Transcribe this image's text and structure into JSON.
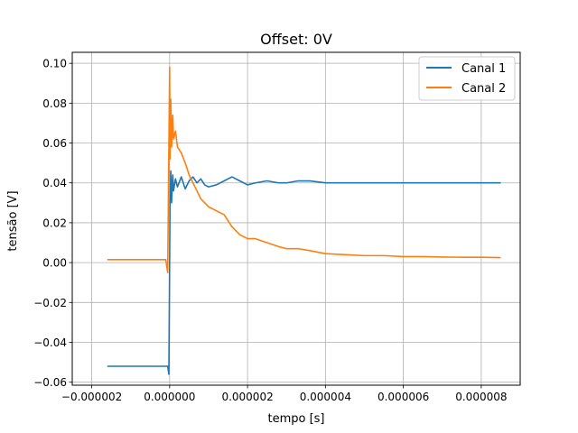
{
  "chart_data": {
    "type": "line",
    "title": "Offset: 0V",
    "xlabel": "tempo [s]",
    "ylabel": "tensão [V]",
    "xlim": [
      -2.5e-06,
      9e-06
    ],
    "ylim": [
      -0.0615,
      0.1055
    ],
    "grid": true,
    "legend_position": "top-right",
    "xticks": [
      {
        "value": -2e-06,
        "label": "−0.000002"
      },
      {
        "value": 0.0,
        "label": "0.000000"
      },
      {
        "value": 2e-06,
        "label": "0.000002"
      },
      {
        "value": 4e-06,
        "label": "0.000004"
      },
      {
        "value": 6e-06,
        "label": "0.000006"
      },
      {
        "value": 8e-06,
        "label": "0.000008"
      }
    ],
    "yticks": [
      {
        "value": -0.06,
        "label": "−0.06"
      },
      {
        "value": -0.04,
        "label": "−0.04"
      },
      {
        "value": -0.02,
        "label": "−0.02"
      },
      {
        "value": 0.0,
        "label": "0.00"
      },
      {
        "value": 0.02,
        "label": "0.02"
      },
      {
        "value": 0.04,
        "label": "0.04"
      },
      {
        "value": 0.06,
        "label": "0.06"
      },
      {
        "value": 0.08,
        "label": "0.08"
      },
      {
        "value": 0.1,
        "label": "0.10"
      }
    ],
    "series": [
      {
        "name": "Canal 1",
        "color": "#1f77b4",
        "x": [
          -1.6e-06,
          -1e-06,
          -5e-07,
          -1.5e-07,
          -5e-08,
          -2e-08,
          0.0,
          1e-08,
          3e-08,
          5e-08,
          8e-08,
          1e-07,
          1.5e-07,
          2e-07,
          3e-07,
          4e-07,
          5e-07,
          6e-07,
          7e-07,
          8e-07,
          9e-07,
          1e-06,
          1.2e-06,
          1.4e-06,
          1.6e-06,
          1.8e-06,
          2e-06,
          2.2e-06,
          2.5e-06,
          2.8e-06,
          3e-06,
          3.3e-06,
          3.6e-06,
          4e-06,
          4.5e-06,
          5e-06,
          5.5e-06,
          6e-06,
          6.5e-06,
          7e-06,
          7.5e-06,
          8e-06,
          8.5e-06
        ],
        "y": [
          -0.052,
          -0.052,
          -0.052,
          -0.052,
          -0.052,
          -0.056,
          0.0,
          0.03,
          0.046,
          0.03,
          0.044,
          0.036,
          0.042,
          0.038,
          0.043,
          0.037,
          0.041,
          0.043,
          0.04,
          0.042,
          0.039,
          0.038,
          0.039,
          0.041,
          0.043,
          0.041,
          0.039,
          0.04,
          0.041,
          0.04,
          0.04,
          0.041,
          0.041,
          0.04,
          0.04,
          0.04,
          0.04,
          0.04,
          0.04,
          0.04,
          0.04,
          0.04,
          0.04
        ]
      },
      {
        "name": "Canal 2",
        "color": "#ff7f0e",
        "x": [
          -1.6e-06,
          -1e-06,
          -5e-07,
          -2e-07,
          -1e-07,
          -5e-08,
          0.0,
          1e-08,
          3e-08,
          5e-08,
          8e-08,
          1e-07,
          1.5e-07,
          2e-07,
          3e-07,
          4e-07,
          5e-07,
          6e-07,
          7e-07,
          8e-07,
          9e-07,
          1e-06,
          1.2e-06,
          1.4e-06,
          1.6e-06,
          1.8e-06,
          2e-06,
          2.2e-06,
          2.5e-06,
          2.8e-06,
          3e-06,
          3.3e-06,
          3.6e-06,
          4e-06,
          4.5e-06,
          5e-06,
          5.5e-06,
          6e-06,
          6.5e-06,
          7e-06,
          7.5e-06,
          8e-06,
          8.5e-06
        ],
        "y": [
          0.0015,
          0.0015,
          0.0015,
          0.0015,
          0.0015,
          -0.005,
          0.098,
          0.052,
          0.082,
          0.058,
          0.074,
          0.062,
          0.066,
          0.058,
          0.055,
          0.05,
          0.044,
          0.04,
          0.036,
          0.032,
          0.03,
          0.028,
          0.026,
          0.024,
          0.018,
          0.014,
          0.012,
          0.012,
          0.01,
          0.008,
          0.007,
          0.007,
          0.006,
          0.0045,
          0.004,
          0.0035,
          0.0035,
          0.003,
          0.003,
          0.0028,
          0.0027,
          0.0027,
          0.0025
        ]
      }
    ]
  }
}
